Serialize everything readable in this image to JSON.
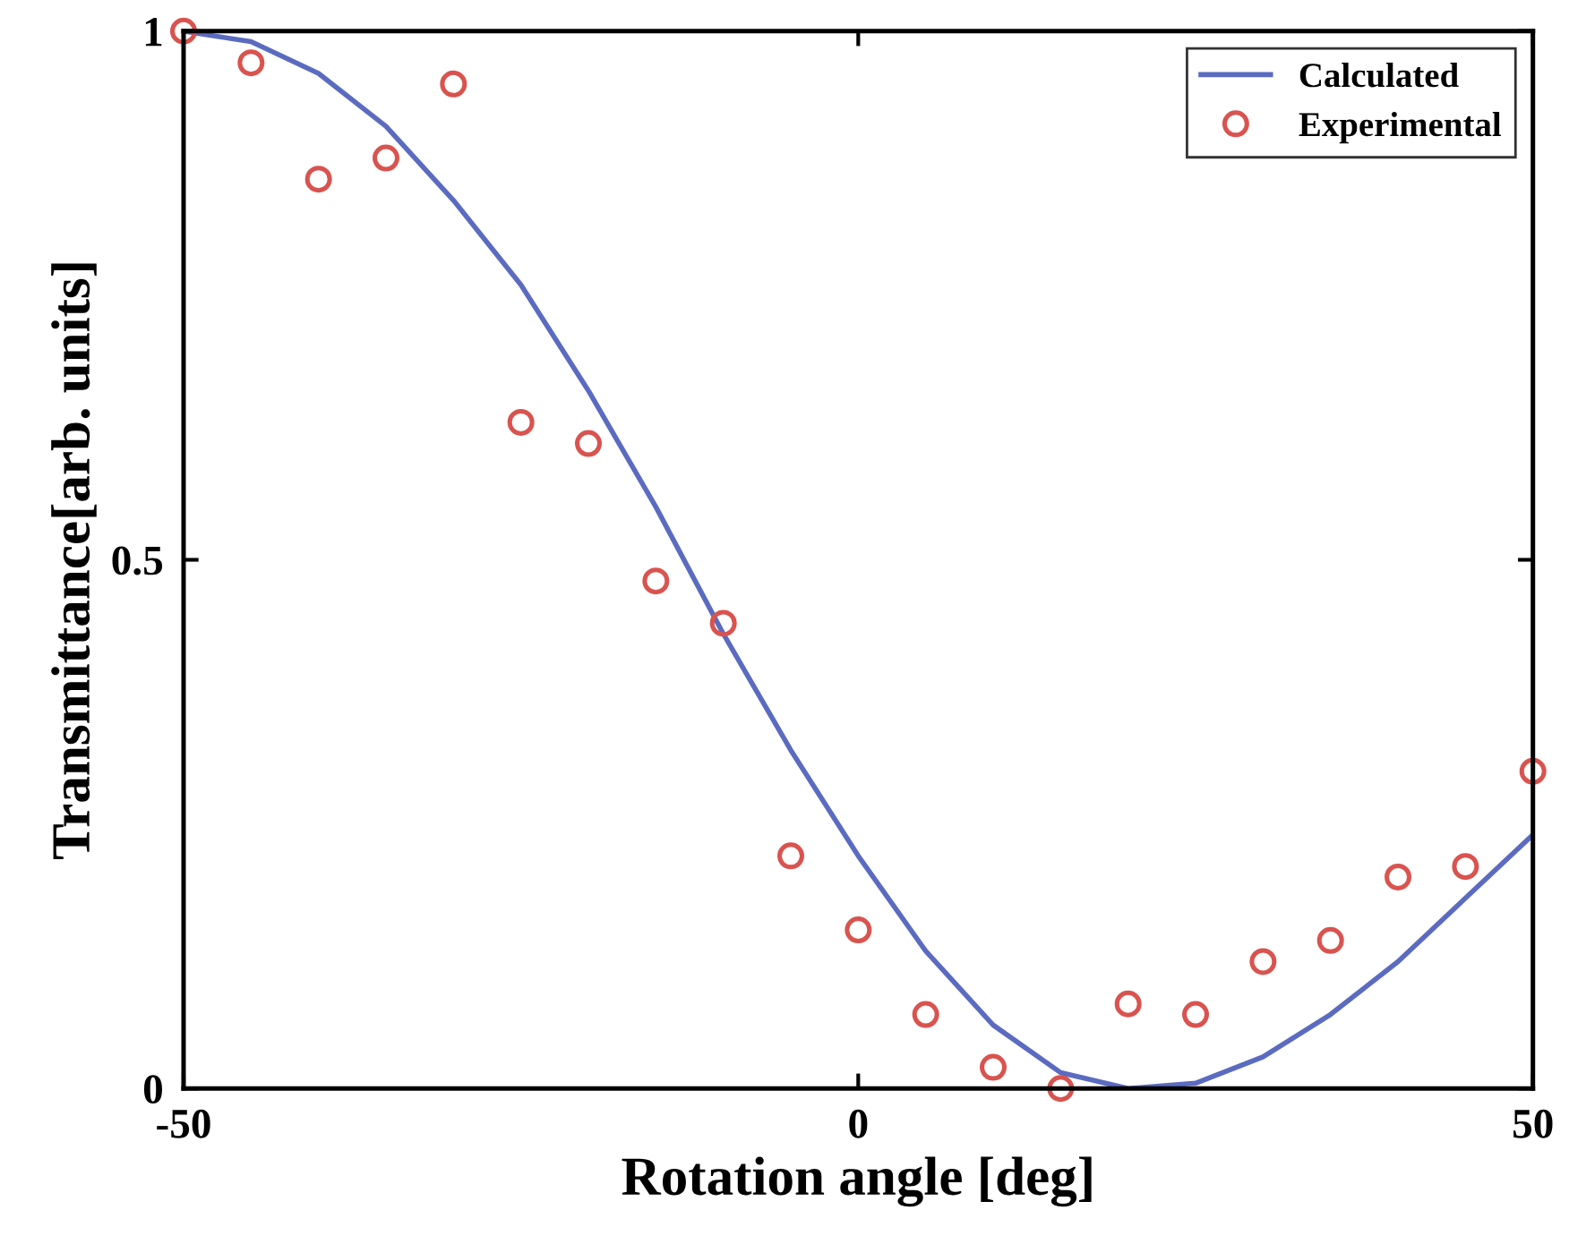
{
  "chart_data": {
    "type": "line",
    "xlabel": "Rotation angle [deg]",
    "ylabel": "Transmittance[arb. units]",
    "xlim": [
      -50,
      50
    ],
    "xticks": [
      -50,
      0,
      50
    ],
    "ylim": [
      0,
      1
    ],
    "yticks": [
      0,
      0.5,
      1
    ],
    "grid": false,
    "legend": "top right",
    "series": [
      {
        "name": "Calculated",
        "color": "#5b6bc0",
        "marker": "none",
        "line_style": "solid",
        "x": [
          -50,
          -45,
          -40,
          -35,
          -30,
          -25,
          -20,
          -15,
          -10,
          -5,
          0,
          5,
          10,
          15,
          20,
          25,
          30,
          35,
          40,
          45,
          50
        ],
        "values": [
          1.0,
          0.99,
          0.96,
          0.91,
          0.84,
          0.76,
          0.66,
          0.55,
          0.43,
          0.32,
          0.22,
          0.13,
          0.06,
          0.015,
          0.0,
          0.005,
          0.03,
          0.07,
          0.12,
          0.18,
          0.24
        ]
      },
      {
        "name": "Experimental",
        "type": "scatter",
        "color": "#d9534f",
        "marker": "circle",
        "x": [
          -50,
          -45,
          -40,
          -35,
          -30,
          -25,
          -20,
          -15,
          -10,
          -5,
          0,
          5,
          10,
          15,
          20,
          25,
          30,
          35,
          40,
          45,
          50
        ],
        "values": [
          1.0,
          0.97,
          0.86,
          0.88,
          0.95,
          0.63,
          0.61,
          0.48,
          0.44,
          0.22,
          0.15,
          0.07,
          0.02,
          0.0,
          0.08,
          0.07,
          0.12,
          0.14,
          0.2,
          0.21,
          0.3
        ]
      }
    ]
  }
}
